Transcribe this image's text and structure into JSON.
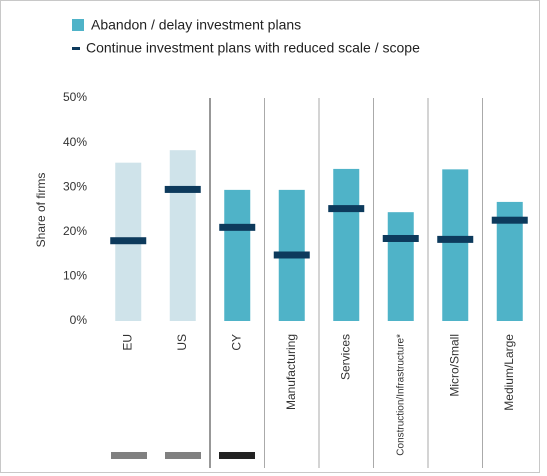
{
  "chart_data": {
    "type": "bar",
    "y_label": "Share of firms",
    "categories": [
      "EU",
      "US",
      "CY",
      "Manufacturing",
      "Services",
      "Construction/Infrastructure*",
      "Micro/Small",
      "Medium/Large"
    ],
    "series": [
      {
        "name": "Abandon / delay investment plans",
        "color": "#4fb3c8",
        "colors": [
          "#cfe3ea",
          "#cfe3ea",
          "#4fb3c8",
          "#4fb3c8",
          "#4fb3c8",
          "#4fb3c8",
          "#4fb3c8",
          "#4fb3c8"
        ],
        "values": [
          35.5,
          38.3,
          29.4,
          29.4,
          34.1,
          24.4,
          34.0,
          26.7
        ]
      },
      {
        "name": "Continue investment plans with reduced scale / scope",
        "color": "#0d3a5c",
        "mark": "dash",
        "values": [
          18.0,
          29.5,
          21.0,
          14.8,
          25.2,
          18.5,
          18.3,
          22.6
        ]
      }
    ],
    "ylim": [
      0,
      50
    ],
    "yticks": [
      {
        "value": 0,
        "label": "0%"
      },
      {
        "value": 10,
        "label": "10%"
      },
      {
        "value": 20,
        "label": "20%"
      },
      {
        "value": 30,
        "label": "30%"
      },
      {
        "value": 40,
        "label": "40%"
      },
      {
        "value": 50,
        "label": "50%"
      }
    ],
    "grid": false
  }
}
